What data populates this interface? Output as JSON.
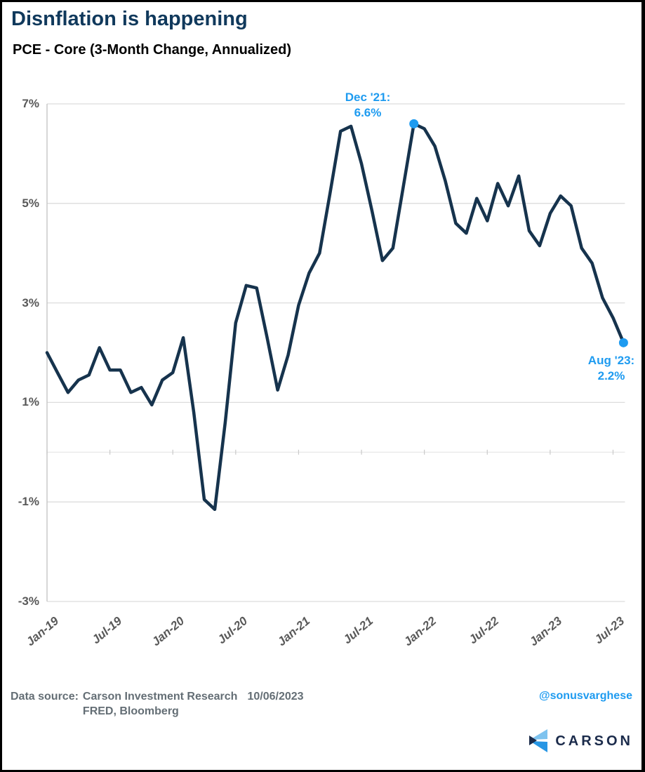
{
  "header": {
    "title": "Disnflation is happening",
    "subtitle": "PCE - Core (3-Month Change, Annualized)"
  },
  "colors": {
    "title_navy": "#10395c",
    "line_navy": "#16334d",
    "accent_blue": "#1e9bf0",
    "gridline_gray": "#dcdcdc",
    "axis_gray": "#c6c6c6",
    "tick_text_gray": "#595959",
    "footer_gray": "#646e75",
    "logo_navy": "#1b2b4b",
    "logo_light_blue": "#7ec3ef",
    "logo_mid_blue": "#2796e4"
  },
  "chart_data": {
    "type": "line",
    "title": "PCE - Core (3-Month Change, Annualized)",
    "xlabel": "",
    "ylabel": "",
    "ylim": [
      -3,
      7
    ],
    "grid": "horizontal",
    "legend": false,
    "line_color": "#16334d",
    "accent_color": "#1e9bf0",
    "x": [
      "Jan-19",
      "Feb-19",
      "Mar-19",
      "Apr-19",
      "May-19",
      "Jun-19",
      "Jul-19",
      "Aug-19",
      "Sep-19",
      "Oct-19",
      "Nov-19",
      "Dec-19",
      "Jan-20",
      "Feb-20",
      "Mar-20",
      "Apr-20",
      "May-20",
      "Jun-20",
      "Jul-20",
      "Aug-20",
      "Sep-20",
      "Oct-20",
      "Nov-20",
      "Dec-20",
      "Jan-21",
      "Feb-21",
      "Mar-21",
      "Apr-21",
      "May-21",
      "Jun-21",
      "Jul-21",
      "Aug-21",
      "Sep-21",
      "Oct-21",
      "Nov-21",
      "Dec-21",
      "Jan-22",
      "Feb-22",
      "Mar-22",
      "Apr-22",
      "May-22",
      "Jun-22",
      "Jul-22",
      "Aug-22",
      "Sep-22",
      "Oct-22",
      "Nov-22",
      "Dec-22",
      "Jan-23",
      "Feb-23",
      "Mar-23",
      "Apr-23",
      "May-23",
      "Jun-23",
      "Jul-23",
      "Aug-23"
    ],
    "values": [
      2.0,
      1.6,
      1.2,
      1.45,
      1.55,
      2.1,
      1.65,
      1.65,
      1.2,
      1.3,
      0.95,
      1.45,
      1.6,
      2.3,
      0.8,
      -0.95,
      -1.15,
      0.6,
      2.6,
      3.35,
      3.3,
      2.3,
      1.25,
      1.95,
      2.95,
      3.6,
      4.0,
      5.2,
      6.45,
      6.55,
      5.8,
      4.85,
      3.85,
      4.1,
      5.35,
      6.6,
      6.5,
      6.15,
      5.45,
      4.6,
      4.4,
      5.1,
      4.65,
      5.4,
      4.95,
      5.55,
      4.45,
      4.15,
      4.8,
      5.15,
      4.95,
      4.1,
      3.8,
      3.1,
      2.7,
      2.2
    ],
    "y_ticks": [
      {
        "value": 7,
        "label": "7%"
      },
      {
        "value": 5,
        "label": "5%"
      },
      {
        "value": 3,
        "label": "3%"
      },
      {
        "value": 1,
        "label": "1%"
      },
      {
        "value": -1,
        "label": "-1%"
      },
      {
        "value": -3,
        "label": "-3%"
      }
    ],
    "x_ticks": [
      {
        "index": 0,
        "label": "Jan-19"
      },
      {
        "index": 6,
        "label": "Jul-19"
      },
      {
        "index": 12,
        "label": "Jan-20"
      },
      {
        "index": 18,
        "label": "Jul-20"
      },
      {
        "index": 24,
        "label": "Jan-21"
      },
      {
        "index": 30,
        "label": "Jul-21"
      },
      {
        "index": 36,
        "label": "Jan-22"
      },
      {
        "index": 42,
        "label": "Jul-22"
      },
      {
        "index": 48,
        "label": "Jan-23"
      },
      {
        "index": 54,
        "label": "Jul-23"
      }
    ],
    "annotations": [
      {
        "index": 35,
        "value": 6.6,
        "label_line1": "Dec '21:",
        "label_line2": "6.6%"
      },
      {
        "index": 55,
        "value": 2.2,
        "label_line1": "Aug '23:",
        "label_line2": "2.2%"
      }
    ]
  },
  "footer": {
    "data_source_label": "Data source:",
    "source_line1": "Carson Investment Research",
    "date": "10/06/2023",
    "source_line2": "FRED, Bloomberg",
    "handle": "@sonusvarghese",
    "logo_text": "CARSON"
  }
}
